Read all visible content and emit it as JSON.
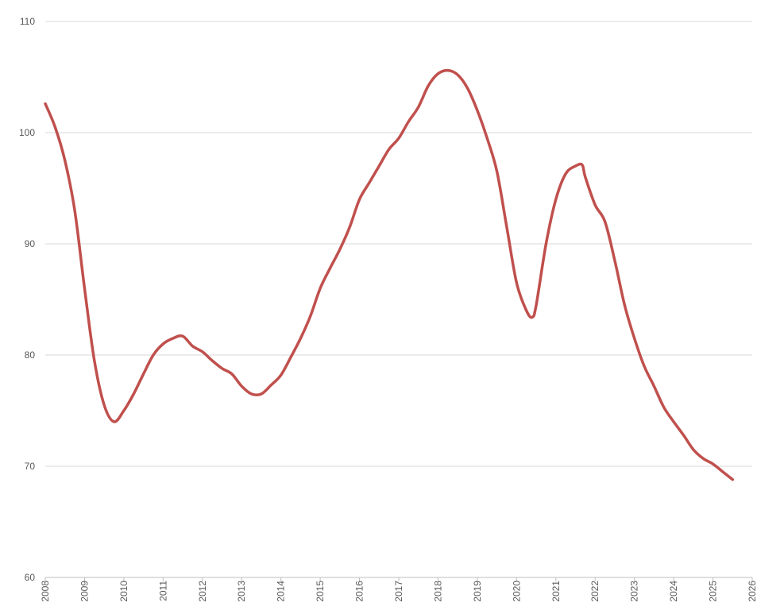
{
  "chart_data": {
    "type": "line",
    "title": "",
    "xlabel": "",
    "ylabel": "",
    "xlim": [
      2008,
      2026
    ],
    "ylim": [
      60,
      110
    ],
    "grid": true,
    "legend": "none",
    "x_ticks": [
      "2008",
      "2009",
      "2010",
      "2011",
      "2012",
      "2013",
      "2014",
      "2015",
      "2016",
      "2017",
      "2018",
      "2019",
      "2020",
      "2021",
      "2022",
      "2023",
      "2024",
      "2025",
      "2026"
    ],
    "y_ticks": [
      60,
      70,
      80,
      90,
      100,
      110
    ],
    "series": [
      {
        "color": "#c0504d",
        "points": [
          [
            2008.0,
            102.6
          ],
          [
            2008.25,
            100.5
          ],
          [
            2008.5,
            97.5
          ],
          [
            2008.75,
            93.0
          ],
          [
            2009.0,
            86.0
          ],
          [
            2009.25,
            79.5
          ],
          [
            2009.5,
            75.5
          ],
          [
            2009.75,
            74.0
          ],
          [
            2010.0,
            75.0
          ],
          [
            2010.25,
            76.5
          ],
          [
            2010.5,
            78.3
          ],
          [
            2010.75,
            80.0
          ],
          [
            2011.0,
            81.0
          ],
          [
            2011.25,
            81.5
          ],
          [
            2011.5,
            81.7
          ],
          [
            2011.75,
            80.8
          ],
          [
            2012.0,
            80.3
          ],
          [
            2012.25,
            79.5
          ],
          [
            2012.5,
            78.8
          ],
          [
            2012.75,
            78.3
          ],
          [
            2013.0,
            77.2
          ],
          [
            2013.25,
            76.5
          ],
          [
            2013.5,
            76.5
          ],
          [
            2013.75,
            77.3
          ],
          [
            2014.0,
            78.2
          ],
          [
            2014.25,
            79.8
          ],
          [
            2014.5,
            81.5
          ],
          [
            2014.75,
            83.5
          ],
          [
            2015.0,
            86.0
          ],
          [
            2015.25,
            87.8
          ],
          [
            2015.5,
            89.5
          ],
          [
            2015.75,
            91.5
          ],
          [
            2016.0,
            94.0
          ],
          [
            2016.25,
            95.5
          ],
          [
            2016.5,
            97.0
          ],
          [
            2016.75,
            98.5
          ],
          [
            2017.0,
            99.5
          ],
          [
            2017.25,
            101.0
          ],
          [
            2017.5,
            102.3
          ],
          [
            2017.75,
            104.2
          ],
          [
            2018.0,
            105.3
          ],
          [
            2018.25,
            105.6
          ],
          [
            2018.5,
            105.2
          ],
          [
            2018.75,
            104.0
          ],
          [
            2019.0,
            102.0
          ],
          [
            2019.25,
            99.5
          ],
          [
            2019.5,
            96.5
          ],
          [
            2019.75,
            91.5
          ],
          [
            2020.0,
            86.5
          ],
          [
            2020.25,
            84.0
          ],
          [
            2020.4,
            83.4
          ],
          [
            2020.5,
            84.5
          ],
          [
            2020.75,
            90.0
          ],
          [
            2021.0,
            94.0
          ],
          [
            2021.25,
            96.3
          ],
          [
            2021.5,
            97.0
          ],
          [
            2021.67,
            97.1
          ],
          [
            2021.75,
            96.0
          ],
          [
            2022.0,
            93.5
          ],
          [
            2022.25,
            92.0
          ],
          [
            2022.5,
            88.5
          ],
          [
            2022.75,
            84.5
          ],
          [
            2023.0,
            81.5
          ],
          [
            2023.25,
            79.0
          ],
          [
            2023.5,
            77.2
          ],
          [
            2023.75,
            75.3
          ],
          [
            2024.0,
            74.0
          ],
          [
            2024.25,
            72.8
          ],
          [
            2024.5,
            71.5
          ],
          [
            2024.75,
            70.7
          ],
          [
            2025.0,
            70.2
          ],
          [
            2025.25,
            69.5
          ],
          [
            2025.5,
            68.8
          ]
        ]
      }
    ]
  }
}
